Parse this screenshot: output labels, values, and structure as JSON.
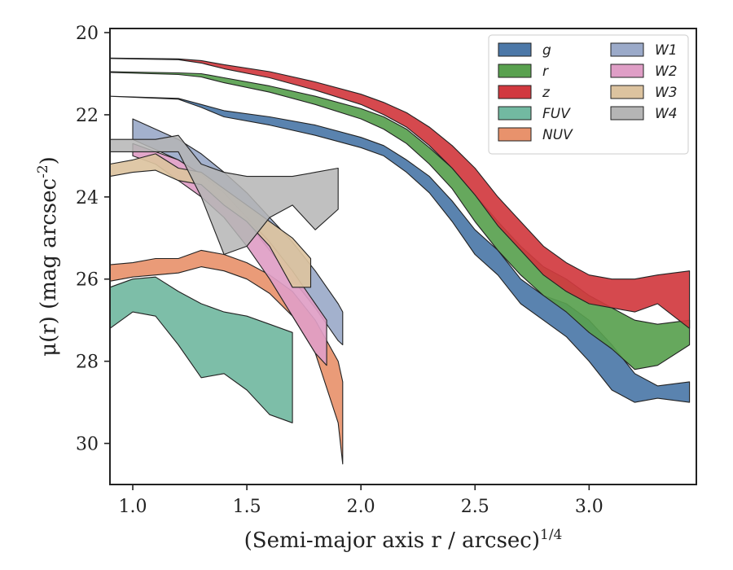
{
  "chart_data": {
    "type": "area",
    "xlabel": "(Semi-major axis r / arcsec)^{1/4}",
    "ylabel": "μ(r) (mag arcsec^{-2})",
    "xlim": [
      0.9,
      3.47
    ],
    "ylim": [
      31,
      19.9
    ],
    "y_inverted": true,
    "xticks": [
      1.0,
      1.5,
      2.0,
      2.5,
      3.0
    ],
    "xtick_labels": [
      "1.0",
      "1.5",
      "2.0",
      "2.5",
      "3.0"
    ],
    "yticks": [
      20,
      22,
      24,
      26,
      28,
      30
    ],
    "ytick_labels": [
      "20",
      "22",
      "24",
      "26",
      "28",
      "30"
    ],
    "grid": false,
    "legend": {
      "placement": "top-right",
      "columns": 2
    },
    "series": [
      {
        "name": "g",
        "color": "#4c78a8",
        "x": [
          0.9,
          1.2,
          1.3,
          1.4,
          1.6,
          1.8,
          2.0,
          2.1,
          2.2,
          2.3,
          2.4,
          2.5,
          2.6,
          2.7,
          2.8,
          2.9,
          3.0,
          3.1,
          3.2,
          3.3,
          3.44
        ],
        "lower": [
          21.55,
          21.6,
          21.75,
          21.9,
          22.05,
          22.25,
          22.55,
          22.75,
          23.1,
          23.5,
          24.1,
          24.8,
          25.3,
          26.0,
          26.4,
          26.6,
          27.0,
          27.6,
          28.3,
          28.6,
          28.5
        ],
        "upper": [
          21.55,
          21.62,
          21.82,
          22.05,
          22.25,
          22.5,
          22.8,
          23.0,
          23.4,
          23.9,
          24.6,
          25.4,
          25.9,
          26.6,
          27.0,
          27.4,
          28.0,
          28.7,
          29.0,
          28.9,
          29.0
        ]
      },
      {
        "name": "r",
        "color": "#59a14f",
        "x": [
          0.9,
          1.2,
          1.3,
          1.4,
          1.6,
          1.8,
          2.0,
          2.1,
          2.2,
          2.3,
          2.4,
          2.5,
          2.6,
          2.7,
          2.8,
          2.9,
          3.0,
          3.1,
          3.2,
          3.3,
          3.44
        ],
        "lower": [
          20.95,
          20.98,
          21.0,
          21.1,
          21.3,
          21.55,
          21.85,
          22.05,
          22.35,
          22.8,
          23.3,
          23.95,
          24.6,
          25.2,
          25.7,
          26.0,
          26.4,
          26.7,
          27.0,
          27.1,
          27.0
        ],
        "upper": [
          20.97,
          21.02,
          21.08,
          21.22,
          21.45,
          21.75,
          22.1,
          22.35,
          22.7,
          23.2,
          23.8,
          24.6,
          25.3,
          25.9,
          26.4,
          26.8,
          27.3,
          27.7,
          28.2,
          28.1,
          27.6
        ]
      },
      {
        "name": "z",
        "color": "#d1393f",
        "x": [
          0.9,
          1.2,
          1.3,
          1.4,
          1.6,
          1.8,
          2.0,
          2.1,
          2.2,
          2.3,
          2.4,
          2.5,
          2.6,
          2.7,
          2.8,
          2.9,
          3.0,
          3.1,
          3.2,
          3.3,
          3.44
        ],
        "lower": [
          20.62,
          20.64,
          20.68,
          20.78,
          20.95,
          21.2,
          21.5,
          21.7,
          21.95,
          22.3,
          22.75,
          23.3,
          24.0,
          24.6,
          25.2,
          25.6,
          25.9,
          26.0,
          26.0,
          25.9,
          25.8
        ],
        "upper": [
          20.63,
          20.66,
          20.74,
          20.88,
          21.1,
          21.4,
          21.75,
          22.0,
          22.3,
          22.75,
          23.3,
          23.95,
          24.7,
          25.3,
          25.9,
          26.3,
          26.6,
          26.7,
          26.8,
          26.6,
          27.2
        ]
      },
      {
        "name": "FUV",
        "color": "#72b9a1",
        "x": [
          0.9,
          1.0,
          1.1,
          1.2,
          1.3,
          1.4,
          1.5,
          1.6,
          1.7
        ],
        "lower": [
          26.2,
          26.0,
          25.95,
          26.3,
          26.6,
          26.8,
          26.9,
          27.1,
          27.3
        ],
        "upper": [
          27.2,
          26.8,
          26.9,
          27.6,
          28.4,
          28.3,
          28.7,
          29.3,
          29.5
        ]
      },
      {
        "name": "NUV",
        "color": "#e8926c",
        "x": [
          0.9,
          1.0,
          1.1,
          1.2,
          1.3,
          1.4,
          1.5,
          1.6,
          1.7,
          1.8,
          1.9,
          1.92
        ],
        "lower": [
          25.65,
          25.6,
          25.5,
          25.5,
          25.3,
          25.4,
          25.6,
          25.9,
          26.3,
          27.0,
          28.0,
          28.5
        ],
        "upper": [
          26.05,
          25.95,
          25.9,
          25.85,
          25.7,
          25.8,
          26.0,
          26.35,
          26.9,
          27.8,
          29.5,
          30.5
        ]
      },
      {
        "name": "W1",
        "color": "#9baac9",
        "x": [
          1.0,
          1.1,
          1.2,
          1.3,
          1.4,
          1.5,
          1.6,
          1.7,
          1.8,
          1.9,
          1.92
        ],
        "lower": [
          22.1,
          22.35,
          22.6,
          22.95,
          23.4,
          23.9,
          24.5,
          25.1,
          25.8,
          26.6,
          26.8
        ],
        "upper": [
          22.6,
          22.85,
          23.1,
          23.5,
          24.0,
          24.6,
          25.3,
          26.0,
          26.7,
          27.5,
          27.6
        ]
      },
      {
        "name": "W2",
        "color": "#df9ec6",
        "x": [
          1.0,
          1.1,
          1.2,
          1.3,
          1.4,
          1.5,
          1.6,
          1.7,
          1.8,
          1.85
        ],
        "lower": [
          22.7,
          22.9,
          23.1,
          23.45,
          23.9,
          24.5,
          25.1,
          25.8,
          26.6,
          27.0
        ],
        "upper": [
          23.0,
          23.2,
          23.6,
          24.0,
          24.5,
          25.2,
          26.0,
          26.9,
          27.8,
          28.1
        ]
      },
      {
        "name": "W3",
        "color": "#dcc39f",
        "x": [
          0.9,
          1.0,
          1.1,
          1.2,
          1.3,
          1.4,
          1.5,
          1.6,
          1.7,
          1.78
        ],
        "lower": [
          23.2,
          23.1,
          22.95,
          23.3,
          23.4,
          23.8,
          24.2,
          24.6,
          25.0,
          25.5
        ],
        "upper": [
          23.5,
          23.4,
          23.35,
          23.6,
          23.7,
          24.2,
          24.6,
          25.2,
          26.2,
          26.2
        ]
      },
      {
        "name": "W4",
        "color": "#b5b5b5",
        "x": [
          0.9,
          1.0,
          1.1,
          1.2,
          1.3,
          1.4,
          1.5,
          1.6,
          1.7,
          1.8,
          1.9
        ],
        "lower": [
          22.6,
          22.6,
          22.6,
          22.5,
          23.2,
          23.4,
          23.5,
          23.5,
          23.5,
          23.4,
          23.3
        ],
        "upper": [
          22.9,
          22.9,
          22.9,
          22.9,
          24.0,
          25.4,
          25.2,
          24.5,
          24.2,
          24.8,
          24.3
        ]
      }
    ]
  }
}
